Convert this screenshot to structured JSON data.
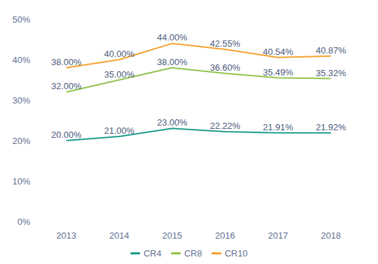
{
  "chart_data": {
    "type": "line",
    "categories": [
      "2013",
      "2014",
      "2015",
      "2016",
      "2017",
      "2018"
    ],
    "series": [
      {
        "name": "CR4",
        "color": "#1b9b8c",
        "values": [
          20,
          21,
          23,
          22.22,
          21.91,
          21.92
        ],
        "value_labels": [
          "20.00%",
          "21.00%",
          "23.00%",
          "22.22%",
          "21.91%",
          "21.92%"
        ]
      },
      {
        "name": "CR8",
        "color": "#8fc34b",
        "values": [
          32,
          35,
          38,
          36.6,
          35.49,
          35.32
        ],
        "value_labels": [
          "32.00%",
          "35.00%",
          "38.00%",
          "36.60%",
          "35.49%",
          "35.32%"
        ]
      },
      {
        "name": "CR10",
        "color": "#f6a02a",
        "values": [
          38,
          40,
          44,
          42.55,
          40.54,
          40.87
        ],
        "value_labels": [
          "38.00%",
          "40.00%",
          "44.00%",
          "42.55%",
          "40.54%",
          "40.87%"
        ]
      }
    ],
    "ylim": [
      0,
      50
    ],
    "yticks": [
      {
        "value": 0,
        "label": "0%"
      },
      {
        "value": 10,
        "label": "10%"
      },
      {
        "value": 20,
        "label": "20%"
      },
      {
        "value": 30,
        "label": "30%"
      },
      {
        "value": 40,
        "label": "40%"
      },
      {
        "value": 50,
        "label": "50%"
      }
    ],
    "grid": false,
    "legend": "bottom",
    "data_labels": true
  }
}
